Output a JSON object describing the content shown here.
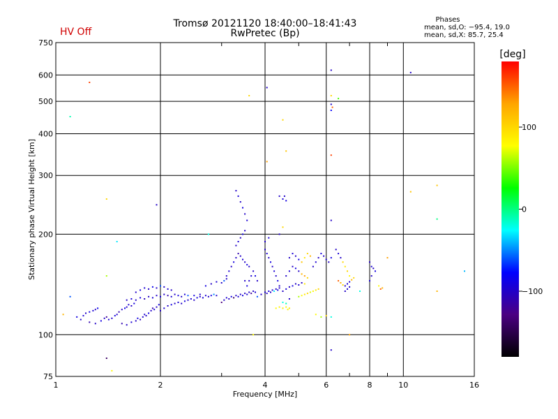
{
  "chart_data": {
    "type": "scatter",
    "title": "Tromsø 20121120 18:40:00–18:41:43",
    "subtitle": "RwPretec (Bp)",
    "status_label": "HV Off",
    "status_color": "#d00000",
    "stats": {
      "heading": "Phases",
      "line1": "mean, sd,O: −95.4, 19.0",
      "line2": "mean, sd,X: 85.7, 25.4"
    },
    "xlabel": "Frequency [MHz]",
    "ylabel": "Stationary phase Virtual Height [km]",
    "x_scale": "log",
    "y_scale": "log",
    "xlim": [
      1,
      16
    ],
    "ylim": [
      75,
      750
    ],
    "x_ticks": [
      {
        "value": 1,
        "label": "1"
      },
      {
        "value": 2,
        "label": "2"
      },
      {
        "value": 4,
        "label": "4"
      },
      {
        "value": 6,
        "label": "6"
      },
      {
        "value": 8,
        "label": "8"
      },
      {
        "value": 10,
        "label": "10"
      },
      {
        "value": 16,
        "label": "16"
      }
    ],
    "y_ticks": [
      {
        "value": 75,
        "label": "75"
      },
      {
        "value": 100,
        "label": "100"
      },
      {
        "value": 200,
        "label": "200"
      },
      {
        "value": 300,
        "label": "300"
      },
      {
        "value": 400,
        "label": "400"
      },
      {
        "value": 500,
        "label": "500"
      },
      {
        "value": 600,
        "label": "600"
      },
      {
        "value": 750,
        "label": "750"
      }
    ],
    "grid": true,
    "colorbar": {
      "label": "[deg]",
      "range": [
        -180,
        180
      ],
      "ticks": [
        {
          "value": 100,
          "label": "100"
        },
        {
          "value": 0,
          "label": "0"
        },
        {
          "value": -100,
          "label": "−100"
        }
      ],
      "colors": [
        "#000000",
        "#4b0082",
        "#0000ff",
        "#00ffff",
        "#00ff00",
        "#ffff00",
        "#ffa500",
        "#ff0000"
      ]
    },
    "points": [
      [
        1.25,
        570,
        160
      ],
      [
        1.1,
        450,
        -10
      ],
      [
        1.1,
        130,
        -60
      ],
      [
        1.05,
        115,
        120
      ],
      [
        1.4,
        255,
        100
      ],
      [
        1.4,
        150,
        60
      ],
      [
        1.5,
        190,
        -30
      ],
      [
        1.4,
        85,
        -140
      ],
      [
        1.45,
        78,
        80
      ],
      [
        1.15,
        113,
        -90
      ],
      [
        1.18,
        111,
        -100
      ],
      [
        1.2,
        114,
        -95
      ],
      [
        1.22,
        116,
        -100
      ],
      [
        1.25,
        117,
        -90
      ],
      [
        1.28,
        118,
        -95
      ],
      [
        1.3,
        119,
        -100
      ],
      [
        1.32,
        120,
        -85
      ],
      [
        1.25,
        109,
        -110
      ],
      [
        1.3,
        108,
        -100
      ],
      [
        1.35,
        110,
        -90
      ],
      [
        1.38,
        112,
        -100
      ],
      [
        1.4,
        113,
        -120
      ],
      [
        1.42,
        111,
        -95
      ],
      [
        1.45,
        112,
        -100
      ],
      [
        1.48,
        114,
        -90
      ],
      [
        1.5,
        115,
        -100
      ],
      [
        1.52,
        117,
        -110
      ],
      [
        1.55,
        119,
        -100
      ],
      [
        1.58,
        120,
        -85
      ],
      [
        1.6,
        121,
        -100
      ],
      [
        1.62,
        123,
        -95
      ],
      [
        1.65,
        122,
        -100
      ],
      [
        1.68,
        124,
        -90
      ],
      [
        1.55,
        108,
        -110
      ],
      [
        1.6,
        107,
        -100
      ],
      [
        1.65,
        109,
        -95
      ],
      [
        1.7,
        110,
        -100
      ],
      [
        1.72,
        112,
        -90
      ],
      [
        1.75,
        111,
        -105
      ],
      [
        1.78,
        113,
        -100
      ],
      [
        1.8,
        115,
        -95
      ],
      [
        1.82,
        114,
        -100
      ],
      [
        1.85,
        116,
        -90
      ],
      [
        1.88,
        118,
        -100
      ],
      [
        1.9,
        120,
        -110
      ],
      [
        1.92,
        119,
        -95
      ],
      [
        1.95,
        121,
        -100
      ],
      [
        1.98,
        123,
        -90
      ],
      [
        1.6,
        127,
        -100
      ],
      [
        1.65,
        128,
        -95
      ],
      [
        1.7,
        127,
        -100
      ],
      [
        1.75,
        129,
        -90
      ],
      [
        1.8,
        128,
        -105
      ],
      [
        1.85,
        130,
        -100
      ],
      [
        1.9,
        129,
        -95
      ],
      [
        1.95,
        131,
        -100
      ],
      [
        2.0,
        130,
        -90
      ],
      [
        2.05,
        132,
        -100
      ],
      [
        2.1,
        131,
        -110
      ],
      [
        2.15,
        130,
        -95
      ],
      [
        2.2,
        132,
        -100
      ],
      [
        2.25,
        131,
        -90
      ],
      [
        2.3,
        130,
        -100
      ],
      [
        2.35,
        132,
        -95
      ],
      [
        1.7,
        134,
        -100
      ],
      [
        1.75,
        136,
        -90
      ],
      [
        1.8,
        138,
        -95
      ],
      [
        1.85,
        137,
        -100
      ],
      [
        1.9,
        139,
        -85
      ],
      [
        1.95,
        138,
        -100
      ],
      [
        2.0,
        140,
        -60
      ],
      [
        2.05,
        139,
        -100
      ],
      [
        2.1,
        137,
        -95
      ],
      [
        2.15,
        136,
        -100
      ],
      [
        2.0,
        118,
        -100
      ],
      [
        2.05,
        120,
        -95
      ],
      [
        2.1,
        122,
        -100
      ],
      [
        2.15,
        123,
        -90
      ],
      [
        2.2,
        124,
        -100
      ],
      [
        2.25,
        125,
        -95
      ],
      [
        2.3,
        124,
        -100
      ],
      [
        2.35,
        126,
        -90
      ],
      [
        2.4,
        127,
        -100
      ],
      [
        2.45,
        128,
        -95
      ],
      [
        2.5,
        127,
        -100
      ],
      [
        2.55,
        129,
        -90
      ],
      [
        2.6,
        130,
        -100
      ],
      [
        2.65,
        129,
        -95
      ],
      [
        2.4,
        131,
        -60
      ],
      [
        2.5,
        131,
        -90
      ],
      [
        2.6,
        132,
        -100
      ],
      [
        2.7,
        131,
        -95
      ],
      [
        2.75,
        130,
        -100
      ],
      [
        2.8,
        131,
        -90
      ],
      [
        2.85,
        132,
        -50
      ],
      [
        2.9,
        131,
        -100
      ],
      [
        2.7,
        140,
        -90
      ],
      [
        2.8,
        142,
        -100
      ],
      [
        2.9,
        144,
        -95
      ],
      [
        3.0,
        143,
        -100
      ],
      [
        3.05,
        145,
        -60
      ],
      [
        3.1,
        147,
        -100
      ],
      [
        2.75,
        200,
        -20
      ],
      [
        1.95,
        245,
        -100
      ],
      [
        3.0,
        125,
        -130
      ],
      [
        3.05,
        127,
        -100
      ],
      [
        3.1,
        129,
        -95
      ],
      [
        3.15,
        128,
        -100
      ],
      [
        3.2,
        130,
        -90
      ],
      [
        3.25,
        129,
        -140
      ],
      [
        3.3,
        131,
        -100
      ],
      [
        3.35,
        130,
        -95
      ],
      [
        3.4,
        132,
        -100
      ],
      [
        3.45,
        131,
        -90
      ],
      [
        3.5,
        133,
        -100
      ],
      [
        3.55,
        132,
        -95
      ],
      [
        3.6,
        134,
        -100
      ],
      [
        3.65,
        133,
        -120
      ],
      [
        3.7,
        135,
        -100
      ],
      [
        3.75,
        134,
        -95
      ],
      [
        3.1,
        150,
        -100
      ],
      [
        3.15,
        155,
        -95
      ],
      [
        3.2,
        160,
        -100
      ],
      [
        3.25,
        165,
        -90
      ],
      [
        3.3,
        170,
        -100
      ],
      [
        3.35,
        175,
        -110
      ],
      [
        3.4,
        172,
        -100
      ],
      [
        3.45,
        168,
        -95
      ],
      [
        3.5,
        165,
        -100
      ],
      [
        3.55,
        162,
        -90
      ],
      [
        3.6,
        160,
        -100
      ],
      [
        3.3,
        185,
        -100
      ],
      [
        3.35,
        190,
        -95
      ],
      [
        3.4,
        195,
        -100
      ],
      [
        3.45,
        200,
        -90
      ],
      [
        3.5,
        205,
        -100
      ],
      [
        3.3,
        270,
        -100
      ],
      [
        3.35,
        260,
        -95
      ],
      [
        3.4,
        250,
        -100
      ],
      [
        3.45,
        240,
        -90
      ],
      [
        3.5,
        230,
        -100
      ],
      [
        3.55,
        220,
        -95
      ],
      [
        3.5,
        145,
        -100
      ],
      [
        3.55,
        140,
        -90
      ],
      [
        3.6,
        145,
        -100
      ],
      [
        3.65,
        150,
        -95
      ],
      [
        3.7,
        155,
        -100
      ],
      [
        3.75,
        150,
        -90
      ],
      [
        3.8,
        145,
        -100
      ],
      [
        3.6,
        520,
        100
      ],
      [
        3.7,
        100,
        80
      ],
      [
        3.8,
        130,
        -60
      ],
      [
        3.9,
        132,
        -100
      ],
      [
        4.0,
        134,
        -95
      ],
      [
        4.05,
        133,
        -100
      ],
      [
        4.1,
        135,
        -90
      ],
      [
        4.15,
        134,
        -100
      ],
      [
        4.2,
        136,
        -95
      ],
      [
        4.25,
        135,
        -30
      ],
      [
        4.3,
        137,
        -100
      ],
      [
        4.35,
        136,
        -90
      ],
      [
        4.4,
        138,
        -100
      ],
      [
        4.0,
        180,
        -100
      ],
      [
        4.05,
        175,
        -95
      ],
      [
        4.1,
        170,
        -100
      ],
      [
        4.15,
        165,
        -90
      ],
      [
        4.2,
        160,
        -100
      ],
      [
        4.25,
        155,
        -95
      ],
      [
        4.3,
        150,
        -100
      ],
      [
        4.35,
        145,
        -90
      ],
      [
        4.4,
        140,
        -100
      ],
      [
        4.05,
        330,
        130
      ],
      [
        4.05,
        550,
        -100
      ],
      [
        4.0,
        190,
        -100
      ],
      [
        4.1,
        195,
        -95
      ],
      [
        4.4,
        260,
        -100
      ],
      [
        4.5,
        255,
        -95
      ],
      [
        4.55,
        260,
        -100
      ],
      [
        4.6,
        252,
        -90
      ],
      [
        4.5,
        440,
        100
      ],
      [
        4.6,
        355,
        110
      ],
      [
        4.5,
        210,
        100
      ],
      [
        4.4,
        200,
        -100
      ],
      [
        4.3,
        120,
        80
      ],
      [
        4.4,
        121,
        85
      ],
      [
        4.5,
        120,
        90
      ],
      [
        4.6,
        121,
        80
      ],
      [
        4.65,
        119,
        85
      ],
      [
        4.7,
        120,
        90
      ],
      [
        4.5,
        125,
        -20
      ],
      [
        4.6,
        124,
        -10
      ],
      [
        4.7,
        128,
        -100
      ],
      [
        4.5,
        135,
        -100
      ],
      [
        4.6,
        137,
        -95
      ],
      [
        4.7,
        139,
        -100
      ],
      [
        4.8,
        140,
        -90
      ],
      [
        4.9,
        142,
        -100
      ],
      [
        5.0,
        141,
        -95
      ],
      [
        5.1,
        143,
        -100
      ],
      [
        5.2,
        142,
        90
      ],
      [
        4.6,
        150,
        -100
      ],
      [
        4.7,
        155,
        -95
      ],
      [
        4.8,
        160,
        -100
      ],
      [
        4.9,
        158,
        -90
      ],
      [
        5.0,
        155,
        -100
      ],
      [
        5.1,
        152,
        120
      ],
      [
        5.2,
        150,
        130
      ],
      [
        5.3,
        148,
        100
      ],
      [
        4.7,
        170,
        -100
      ],
      [
        4.8,
        175,
        -95
      ],
      [
        4.9,
        172,
        -100
      ],
      [
        5.0,
        168,
        -90
      ],
      [
        5.1,
        165,
        110
      ],
      [
        5.2,
        170,
        90
      ],
      [
        5.3,
        175,
        100
      ],
      [
        5.4,
        172,
        120
      ],
      [
        5.0,
        130,
        60
      ],
      [
        5.1,
        131,
        80
      ],
      [
        5.2,
        132,
        90
      ],
      [
        5.3,
        133,
        100
      ],
      [
        5.4,
        134,
        70
      ],
      [
        5.5,
        135,
        80
      ],
      [
        5.6,
        136,
        90
      ],
      [
        5.7,
        137,
        100
      ],
      [
        5.5,
        160,
        -100
      ],
      [
        5.6,
        165,
        -95
      ],
      [
        5.7,
        170,
        -100
      ],
      [
        5.8,
        175,
        -90
      ],
      [
        5.9,
        172,
        -100
      ],
      [
        6.0,
        168,
        -95
      ],
      [
        6.1,
        165,
        -100
      ],
      [
        6.2,
        170,
        -90
      ],
      [
        5.6,
        115,
        80
      ],
      [
        5.8,
        113,
        60
      ],
      [
        6.0,
        114,
        100
      ],
      [
        6.2,
        113,
        -20
      ],
      [
        6.2,
        620,
        -100
      ],
      [
        6.2,
        490,
        -100
      ],
      [
        6.2,
        470,
        -80
      ],
      [
        6.25,
        480,
        150
      ],
      [
        6.2,
        520,
        100
      ],
      [
        6.2,
        345,
        160
      ],
      [
        6.2,
        220,
        -100
      ],
      [
        6.2,
        90,
        -100
      ],
      [
        6.5,
        510,
        40
      ],
      [
        6.4,
        180,
        -100
      ],
      [
        6.5,
        175,
        -95
      ],
      [
        6.6,
        170,
        -100
      ],
      [
        6.7,
        165,
        100
      ],
      [
        6.8,
        160,
        90
      ],
      [
        6.9,
        155,
        100
      ],
      [
        7.0,
        150,
        80
      ],
      [
        6.5,
        145,
        150
      ],
      [
        6.6,
        143,
        120
      ],
      [
        6.7,
        141,
        100
      ],
      [
        6.8,
        140,
        -100
      ],
      [
        6.9,
        142,
        -95
      ],
      [
        7.0,
        144,
        -100
      ],
      [
        7.1,
        146,
        120
      ],
      [
        7.2,
        148,
        100
      ],
      [
        6.8,
        135,
        -100
      ],
      [
        6.9,
        137,
        -95
      ],
      [
        7.0,
        139,
        -100
      ],
      [
        7.0,
        100,
        130
      ],
      [
        7.5,
        135,
        -20
      ],
      [
        8.0,
        165,
        -100
      ],
      [
        8.1,
        160,
        -95
      ],
      [
        8.2,
        158,
        -100
      ],
      [
        8.3,
        155,
        -90
      ],
      [
        8.1,
        150,
        -100
      ],
      [
        8.0,
        145,
        -95
      ],
      [
        8.5,
        140,
        80
      ],
      [
        8.7,
        138,
        120
      ],
      [
        8.6,
        137,
        150
      ],
      [
        9.0,
        170,
        130
      ],
      [
        10.5,
        610,
        -100
      ],
      [
        10.5,
        268,
        110
      ],
      [
        12.5,
        280,
        110
      ],
      [
        12.5,
        222,
        0
      ],
      [
        12.5,
        135,
        120
      ],
      [
        15.0,
        155,
        -40
      ]
    ]
  }
}
